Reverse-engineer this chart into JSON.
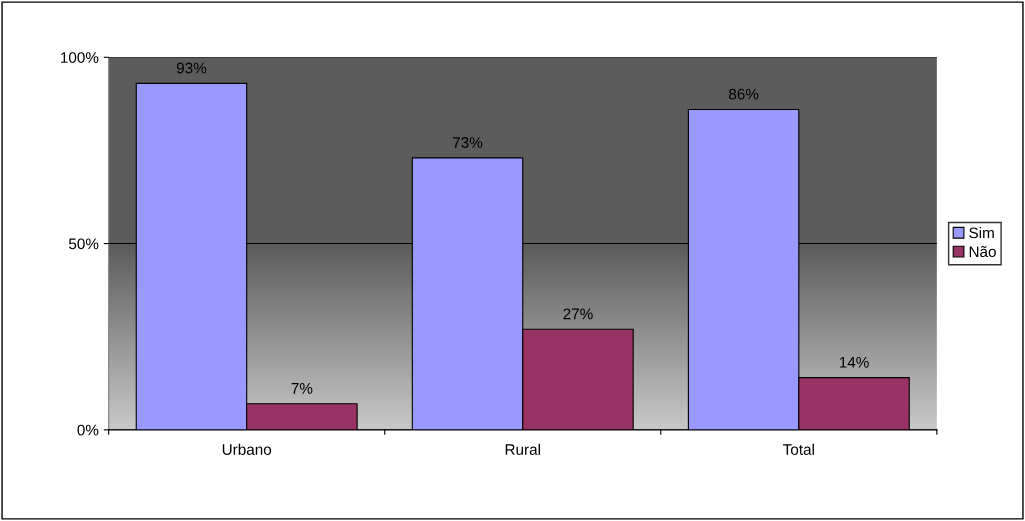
{
  "chart_data": {
    "type": "bar",
    "categories": [
      "Urbano",
      "Rural",
      "Total"
    ],
    "series": [
      {
        "name": "Sim",
        "color": "#9999ff",
        "values": [
          93,
          73,
          86
        ]
      },
      {
        "name": "Não",
        "color": "#993366",
        "values": [
          7,
          27,
          14
        ]
      }
    ],
    "ylim": [
      0,
      100
    ],
    "yticks": [
      {
        "value": 0,
        "label": "0%"
      },
      {
        "value": 50,
        "label": "50%"
      },
      {
        "value": 100,
        "label": "100%"
      }
    ],
    "value_labels": [
      [
        "93%",
        "73%",
        "86%"
      ],
      [
        "7%",
        "27%",
        "14%"
      ]
    ],
    "grid": "y",
    "legend": "right"
  }
}
